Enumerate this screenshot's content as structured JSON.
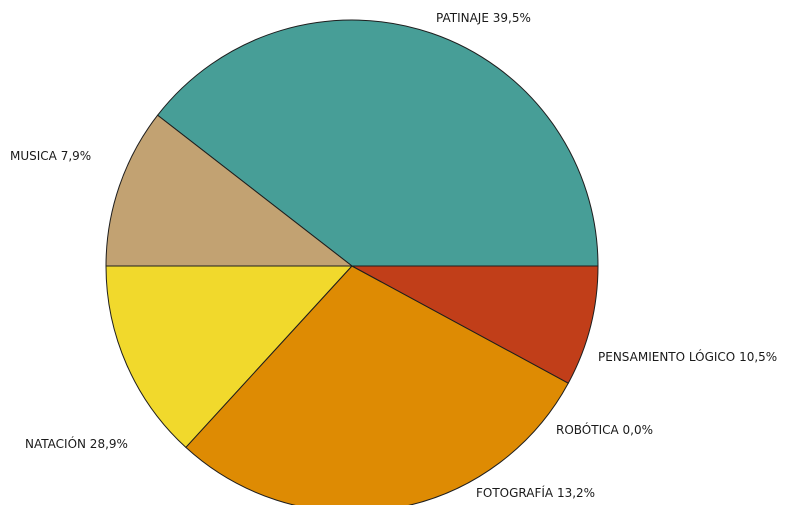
{
  "chart_data": {
    "type": "pie",
    "title": "",
    "slices": [
      {
        "label": "PATINAJE",
        "value": 39.5,
        "display": "PATINAJE 39,5%",
        "color": "#479e97"
      },
      {
        "label": "PENSAMIENTO LÓGICO",
        "value": 10.5,
        "display": "PENSAMIENTO LÓGICO 10,5%",
        "color": "#c2a272"
      },
      {
        "label": "ROBÓTICA",
        "value": 0.0,
        "display": "ROBÓTICA 0,0%",
        "color": "#7c7c7c"
      },
      {
        "label": "FOTOGRAFÍA",
        "value": 13.2,
        "display": "FOTOGRAFÍA 13,2%",
        "color": "#f1d92c"
      },
      {
        "label": "NATACIÓN",
        "value": 28.9,
        "display": "NATACIÓN 28,9%",
        "color": "#de8b03"
      },
      {
        "label": "MUSICA",
        "value": 7.9,
        "display": "MUSICA 7,9%",
        "color": "#c13e19"
      }
    ],
    "start_direction": "3 o'clock",
    "direction": "counter-clockwise",
    "legend": "none",
    "labels": "outside"
  }
}
